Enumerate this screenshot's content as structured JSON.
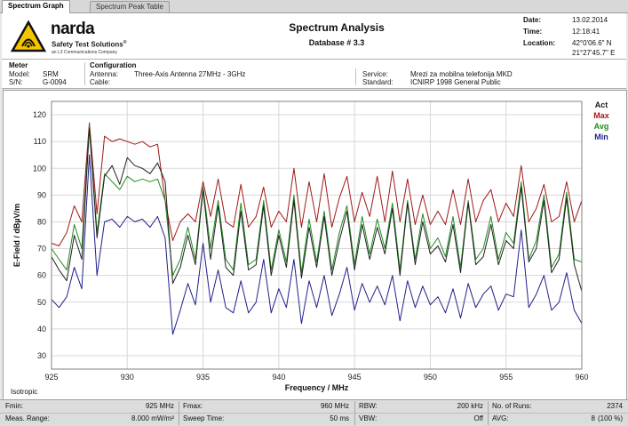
{
  "tabs": [
    {
      "label": "Spectrum Graph",
      "active": true
    },
    {
      "label": "Spectrum Peak Table",
      "active": false
    }
  ],
  "brand": {
    "name": "narda",
    "subtitle": "Safety Test Solutions",
    "registered": "®",
    "company": "an L3 Communications Company"
  },
  "header": {
    "title": "Spectrum Analysis",
    "database": "Database # 3.3",
    "date_label": "Date:",
    "date_value": "13.02.2014",
    "time_label": "Time:",
    "time_value": "12:18:41",
    "location_label": "Location:",
    "location_lat": "42°0'06.6\" N",
    "location_lon": "21°27'45.7\" E"
  },
  "meter": {
    "heading": "Meter",
    "model_label": "Model:",
    "model_value": "SRM",
    "sn_label": "S/N:",
    "sn_value": "G-0094"
  },
  "configuration": {
    "heading": "Configuration",
    "antenna_label": "Antenna:",
    "antenna_value": "Three-Axis Antenna 27MHz - 3GHz",
    "cable_label": "Cable:",
    "cable_value": "",
    "service_label": "Service:",
    "service_value": "Mrezi za mobilna telefonija MKD",
    "standard_label": "Standard:",
    "standard_value": "ICNIRP 1998 General Public"
  },
  "graph_footer_label": "Isotropic",
  "chart_data": {
    "type": "line",
    "xlabel": "Frequency / MHz",
    "ylabel": "E-Field / dBµV/m",
    "xlim": [
      925,
      960
    ],
    "ylim": [
      25,
      125
    ],
    "x_ticks": [
      925,
      930,
      935,
      940,
      945,
      950,
      955,
      960
    ],
    "y_ticks": [
      30,
      40,
      50,
      60,
      70,
      80,
      90,
      100,
      110,
      120
    ],
    "grid": true,
    "legend_position": "top-right",
    "series": [
      {
        "name": "Act",
        "color": "#202020",
        "x": [
          925,
          925.5,
          926,
          926.5,
          927,
          927.5,
          928,
          928.5,
          929,
          929.5,
          930,
          930.5,
          931,
          931.5,
          932,
          932.5,
          933,
          933.5,
          934,
          934.5,
          935,
          935.5,
          936,
          936.5,
          937,
          937.5,
          938,
          938.5,
          939,
          939.5,
          940,
          940.5,
          941,
          941.5,
          942,
          942.5,
          943,
          943.5,
          944,
          944.5,
          945,
          945.5,
          946,
          946.5,
          947,
          947.5,
          948,
          948.5,
          949,
          949.5,
          950,
          950.5,
          951,
          951.5,
          952,
          952.5,
          953,
          953.5,
          954,
          954.5,
          955,
          955.5,
          956,
          956.5,
          957,
          957.5,
          958,
          958.5,
          959,
          959.5,
          960
        ],
        "y": [
          67,
          62,
          58,
          75,
          66,
          115,
          74,
          97,
          101,
          94,
          104,
          101,
          100,
          98,
          102,
          95,
          57,
          63,
          75,
          64,
          92,
          66,
          86,
          63,
          60,
          84,
          62,
          64,
          86,
          60,
          75,
          63,
          88,
          59,
          78,
          63,
          82,
          60,
          73,
          84,
          62,
          79,
          66,
          78,
          68,
          85,
          60,
          87,
          64,
          80,
          68,
          71,
          65,
          79,
          61,
          87,
          64,
          67,
          79,
          64,
          73,
          70,
          93,
          65,
          70,
          88,
          61,
          66,
          89,
          64,
          54
        ]
      },
      {
        "name": "Max",
        "color": "#a01818",
        "x": [
          925,
          925.5,
          926,
          926.5,
          927,
          927.5,
          928,
          928.5,
          929,
          929.5,
          930,
          930.5,
          931,
          931.5,
          932,
          932.5,
          933,
          933.5,
          934,
          934.5,
          935,
          935.5,
          936,
          936.5,
          937,
          937.5,
          938,
          938.5,
          939,
          939.5,
          940,
          940.5,
          941,
          941.5,
          942,
          942.5,
          943,
          943.5,
          944,
          944.5,
          945,
          945.5,
          946,
          946.5,
          947,
          947.5,
          948,
          948.5,
          949,
          949.5,
          950,
          950.5,
          951,
          951.5,
          952,
          952.5,
          953,
          953.5,
          954,
          954.5,
          955,
          955.5,
          956,
          956.5,
          957,
          957.5,
          958,
          958.5,
          959,
          959.5,
          960
        ],
        "y": [
          72,
          71,
          76,
          86,
          80,
          117,
          83,
          112,
          110,
          111,
          110,
          109,
          110,
          108,
          109,
          88,
          73,
          80,
          83,
          80,
          95,
          82,
          96,
          80,
          78,
          94,
          78,
          82,
          93,
          78,
          84,
          80,
          100,
          78,
          95,
          80,
          98,
          78,
          89,
          97,
          80,
          91,
          82,
          97,
          80,
          99,
          80,
          96,
          79,
          90,
          79,
          84,
          79,
          92,
          79,
          96,
          80,
          88,
          92,
          80,
          87,
          82,
          101,
          80,
          85,
          94,
          80,
          82,
          95,
          80,
          88
        ]
      },
      {
        "name": "Avg",
        "color": "#1f8a1f",
        "x": [
          925,
          925.5,
          926,
          926.5,
          927,
          927.5,
          928,
          928.5,
          929,
          929.5,
          930,
          930.5,
          931,
          931.5,
          932,
          932.5,
          933,
          933.5,
          934,
          934.5,
          935,
          935.5,
          936,
          936.5,
          937,
          937.5,
          938,
          938.5,
          939,
          939.5,
          940,
          940.5,
          941,
          941.5,
          942,
          942.5,
          943,
          943.5,
          944,
          944.5,
          945,
          945.5,
          946,
          946.5,
          947,
          947.5,
          948,
          948.5,
          949,
          949.5,
          950,
          950.5,
          951,
          951.5,
          952,
          952.5,
          953,
          953.5,
          954,
          954.5,
          955,
          955.5,
          956,
          956.5,
          957,
          957.5,
          958,
          958.5,
          959,
          959.5,
          960
        ],
        "y": [
          70,
          66,
          62,
          79,
          70,
          116,
          76,
          98,
          95,
          92,
          97,
          95,
          96,
          95,
          96,
          88,
          60,
          66,
          78,
          66,
          93,
          70,
          88,
          66,
          62,
          87,
          64,
          66,
          88,
          62,
          77,
          65,
          90,
          61,
          81,
          65,
          84,
          62,
          76,
          86,
          64,
          82,
          68,
          81,
          70,
          87,
          62,
          88,
          66,
          83,
          70,
          74,
          67,
          82,
          63,
          88,
          66,
          70,
          82,
          66,
          76,
          72,
          95,
          66,
          73,
          90,
          63,
          68,
          91,
          66,
          65
        ]
      },
      {
        "name": "Min",
        "color": "#1f1f8c",
        "x": [
          925,
          925.5,
          926,
          926.5,
          927,
          927.5,
          928,
          928.5,
          929,
          929.5,
          930,
          930.5,
          931,
          931.5,
          932,
          932.5,
          933,
          933.5,
          934,
          934.5,
          935,
          935.5,
          936,
          936.5,
          937,
          937.5,
          938,
          938.5,
          939,
          939.5,
          940,
          940.5,
          941,
          941.5,
          942,
          942.5,
          943,
          943.5,
          944,
          944.5,
          945,
          945.5,
          946,
          946.5,
          947,
          947.5,
          948,
          948.5,
          949,
          949.5,
          950,
          950.5,
          951,
          951.5,
          952,
          952.5,
          953,
          953.5,
          954,
          954.5,
          955,
          955.5,
          956,
          956.5,
          957,
          957.5,
          958,
          958.5,
          959,
          959.5,
          960
        ],
        "y": [
          51,
          48,
          52,
          63,
          55,
          105,
          60,
          80,
          81,
          78,
          82,
          80,
          81,
          78,
          82,
          74,
          38,
          47,
          57,
          49,
          72,
          50,
          62,
          48,
          46,
          58,
          46,
          50,
          66,
          46,
          55,
          48,
          66,
          42,
          58,
          48,
          60,
          45,
          53,
          63,
          47,
          57,
          50,
          56,
          49,
          60,
          43,
          58,
          48,
          56,
          49,
          52,
          46,
          55,
          44,
          57,
          48,
          53,
          56,
          47,
          53,
          52,
          77,
          48,
          53,
          60,
          47,
          50,
          61,
          47,
          42
        ]
      }
    ]
  },
  "footer": {
    "fmin_label": "Fmin:",
    "fmin_value": "925 MHz",
    "fmax_label": "Fmax:",
    "fmax_value": "960 MHz",
    "rbw_label": "RBW:",
    "rbw_value": "200 kHz",
    "runs_label": "No. of Runs:",
    "runs_value": "2374",
    "range_label": "Meas. Range:",
    "range_value": "8.000 mW/m²",
    "sweep_label": "Sweep Time:",
    "sweep_value": "50 ms",
    "vbw_label": "VBW:",
    "vbw_value": "Off",
    "avg_label": "AVG:",
    "avg_value": "8",
    "avg_pct": "(100 %)"
  },
  "colors": {
    "grid": "#d8d8d8",
    "plot_border": "#808080",
    "logo_yellow": "#f4c400"
  },
  "icons": {
    "logo": "narda-warning-triangle-icon"
  }
}
